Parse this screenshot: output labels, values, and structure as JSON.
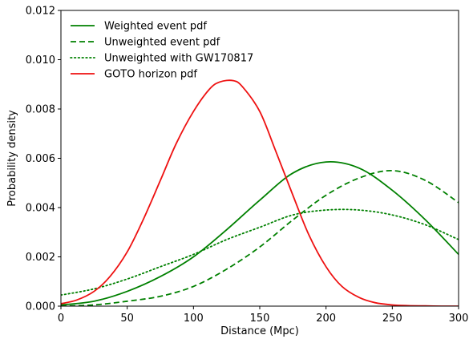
{
  "chart_data": {
    "type": "line",
    "title": "",
    "xlabel": "Distance (Mpc)",
    "ylabel": "Probability density",
    "xlim": [
      0,
      300
    ],
    "ylim": [
      0,
      0.012
    ],
    "xticks": [
      "0",
      "50",
      "100",
      "150",
      "200",
      "250",
      "300"
    ],
    "yticks": [
      "0.000",
      "0.002",
      "0.004",
      "0.006",
      "0.008",
      "0.010",
      "0.012"
    ],
    "grid": false,
    "legend_position": "top-left",
    "series": [
      {
        "name": "Weighted event pdf",
        "color": "#008000",
        "style": "solid",
        "x": [
          0,
          25,
          50,
          75,
          100,
          125,
          150,
          175,
          200,
          225,
          250,
          275,
          300
        ],
        "y": [
          5e-05,
          0.0002,
          0.0006,
          0.0012,
          0.002,
          0.0031,
          0.0043,
          0.0054,
          0.00585,
          0.0056,
          0.0047,
          0.0035,
          0.0021
        ]
      },
      {
        "name": "Unweighted event pdf",
        "color": "#008000",
        "style": "dashed",
        "x": [
          0,
          25,
          50,
          75,
          100,
          125,
          150,
          175,
          200,
          225,
          250,
          275,
          300
        ],
        "y": [
          0.0,
          5e-05,
          0.0002,
          0.0004,
          0.0008,
          0.0015,
          0.0024,
          0.0035,
          0.0045,
          0.0052,
          0.0055,
          0.0051,
          0.0042
        ]
      },
      {
        "name": "Unweighted with GW170817",
        "color": "#008000",
        "style": "dotted",
        "x": [
          0,
          25,
          50,
          75,
          100,
          125,
          150,
          175,
          200,
          225,
          250,
          275,
          300
        ],
        "y": [
          0.00045,
          0.0007,
          0.0011,
          0.0016,
          0.0021,
          0.0027,
          0.0032,
          0.0037,
          0.0039,
          0.0039,
          0.0037,
          0.0033,
          0.0027
        ]
      },
      {
        "name": "GOTO horizon pdf",
        "color": "#ee1111",
        "style": "solid",
        "x": [
          0,
          12,
          25,
          37,
          50,
          62,
          75,
          87,
          100,
          112,
          120,
          130,
          137,
          150,
          162,
          175,
          187,
          200,
          212,
          225,
          237,
          250,
          262,
          275,
          287,
          300
        ],
        "y": [
          0.0001,
          0.00025,
          0.0006,
          0.0012,
          0.0022,
          0.0035,
          0.0051,
          0.0066,
          0.0079,
          0.0088,
          0.0091,
          0.00915,
          0.0089,
          0.0079,
          0.0063,
          0.0045,
          0.0029,
          0.0016,
          0.0008,
          0.00035,
          0.00014,
          5e-05,
          2e-05,
          1e-05,
          0.0,
          0.0
        ]
      }
    ]
  }
}
